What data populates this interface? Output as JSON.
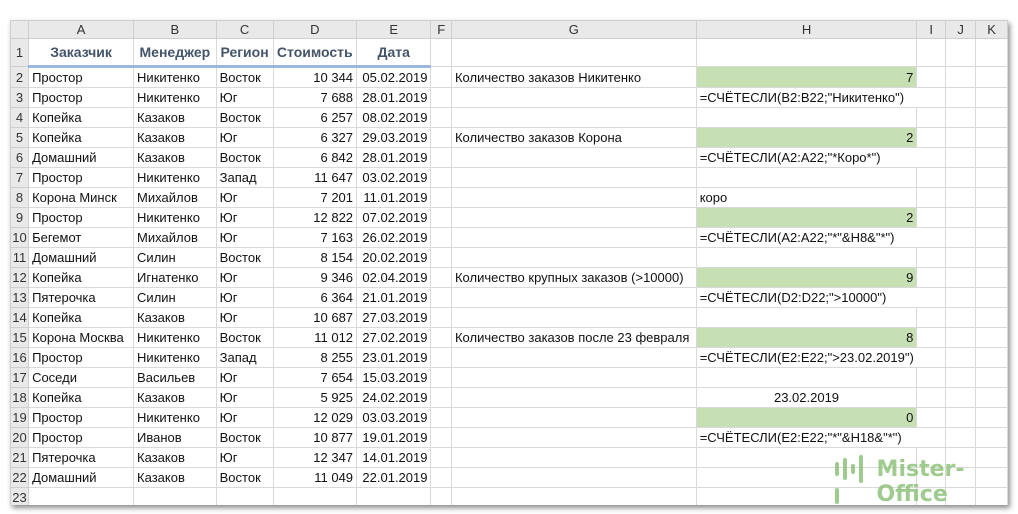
{
  "columns": [
    "A",
    "B",
    "C",
    "D",
    "E",
    "F",
    "G",
    "H",
    "I",
    "J",
    "K"
  ],
  "headers": [
    "Заказчик",
    "Менеджер",
    "Регион",
    "Стоимость",
    "Дата"
  ],
  "rows": [
    [
      "Простор",
      "Никитенко",
      "Восток",
      "10 344",
      "05.02.2019"
    ],
    [
      "Простор",
      "Никитенко",
      "Юг",
      "7 688",
      "28.01.2019"
    ],
    [
      "Копейка",
      "Казаков",
      "Восток",
      "6 257",
      "08.02.2019"
    ],
    [
      "Копейка",
      "Казаков",
      "Юг",
      "6 327",
      "29.03.2019"
    ],
    [
      "Домашний",
      "Казаков",
      "Восток",
      "6 842",
      "28.01.2019"
    ],
    [
      "Простор",
      "Никитенко",
      "Запад",
      "11 647",
      "03.02.2019"
    ],
    [
      "Корона Минск",
      "Михайлов",
      "Юг",
      "7 201",
      "11.01.2019"
    ],
    [
      "Простор",
      "Никитенко",
      "Юг",
      "12 822",
      "07.02.2019"
    ],
    [
      "Бегемот",
      "Михайлов",
      "Юг",
      "7 163",
      "26.02.2019"
    ],
    [
      "Домашний",
      "Силин",
      "Восток",
      "8 154",
      "20.02.2019"
    ],
    [
      "Копейка",
      "Игнатенко",
      "Юг",
      "9 346",
      "02.04.2019"
    ],
    [
      "Пятерочка",
      "Силин",
      "Юг",
      "6 364",
      "21.01.2019"
    ],
    [
      "Копейка",
      "Казаков",
      "Юг",
      "10 687",
      "27.03.2019"
    ],
    [
      "Корона Москва",
      "Никитенко",
      "Восток",
      "11 012",
      "27.02.2019"
    ],
    [
      "Простор",
      "Никитенко",
      "Запад",
      "8 255",
      "23.01.2019"
    ],
    [
      "Соседи",
      "Васильев",
      "Юг",
      "7 654",
      "15.03.2019"
    ],
    [
      "Копейка",
      "Казаков",
      "Юг",
      "5 925",
      "24.02.2019"
    ],
    [
      "Простор",
      "Никитенко",
      "Юг",
      "12 029",
      "03.03.2019"
    ],
    [
      "Простор",
      "Иванов",
      "Восток",
      "10 877",
      "19.01.2019"
    ],
    [
      "Пятерочка",
      "Казаков",
      "Юг",
      "12 347",
      "14.01.2019"
    ],
    [
      "Домашний",
      "Казаков",
      "Восток",
      "11 049",
      "22.01.2019"
    ]
  ],
  "side": {
    "2": {
      "g": "Количество заказов Никитенко",
      "h": "7",
      "green": true
    },
    "3": {
      "h": "=СЧЁТЕСЛИ(B2:B22;\"Никитенко\")",
      "formula": true
    },
    "5": {
      "g": "Количество заказов Корона",
      "h": "2",
      "green": true
    },
    "6": {
      "h": "=СЧЁТЕСЛИ(A2:A22;\"*Коро*\")",
      "formula": true
    },
    "8": {
      "h": "коро",
      "left": true
    },
    "9": {
      "h": "2",
      "green": true
    },
    "10": {
      "h": "=СЧЁТЕСЛИ(A2:A22;\"*\"&H8&\"*\")",
      "formula": true
    },
    "12": {
      "g": "Количество крупных заказов (>10000)",
      "h": "9",
      "green": true
    },
    "13": {
      "h": "=СЧЁТЕСЛИ(D2:D22;\">10000\")",
      "formula": true
    },
    "15": {
      "g": "Количество заказов после 23 февраля",
      "h": "8",
      "green": true
    },
    "16": {
      "h": "=СЧЁТЕСЛИ(E2:E22;\">23.02.2019\")",
      "formula": true
    },
    "18": {
      "h": "23.02.2019",
      "center": true
    },
    "19": {
      "h": "0",
      "green": true
    },
    "20": {
      "h": "=СЧЁТЕСЛИ(E2:E22;\"*\"&H18&\"*\")",
      "formula": true
    }
  },
  "watermark": "Mister-Office",
  "colors": {
    "green_fill": "#c6e0b4",
    "header_text": "#44546a",
    "header_underline": "#9bb7e0"
  }
}
